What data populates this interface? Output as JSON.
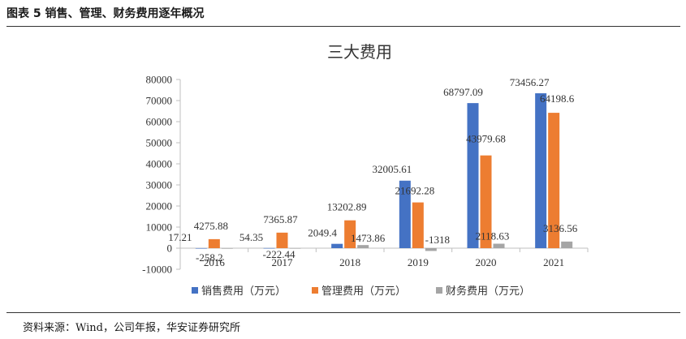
{
  "header": {
    "figure_title": "图表 5 销售、管理、财务费用逐年概况"
  },
  "footer": {
    "source": "资料来源：Wind，公司年报，华安证券研究所"
  },
  "colors": {
    "sales": "#4472C4",
    "admin": "#ED7D31",
    "finance": "#A5A5A5"
  },
  "chart_data": {
    "type": "bar",
    "title": "三大费用",
    "categories": [
      "2016",
      "2017",
      "2018",
      "2019",
      "2020",
      "2021"
    ],
    "series": [
      {
        "name": "销售费用（万元）",
        "values": [
          17.21,
          54.35,
          2049.4,
          32005.61,
          68797.09,
          73456.27
        ]
      },
      {
        "name": "管理费用（万元）",
        "values": [
          4275.88,
          7365.87,
          13202.89,
          21692.28,
          43979.68,
          64198.6
        ]
      },
      {
        "name": "财务费用（万元）",
        "values": [
          -258.2,
          -222.44,
          1473.86,
          -1318,
          2118.63,
          3136.56
        ]
      }
    ],
    "data_labels": [
      [
        "17.21",
        "54.35",
        "2049.4",
        "32005.61",
        "68797.09",
        "73456.27"
      ],
      [
        "4275.88",
        "7365.87",
        "13202.89",
        "21692.28",
        "43979.68",
        "64198.6"
      ],
      [
        "-258.2",
        "-222.44",
        "1473.86",
        "-1318",
        "2118.63",
        "3136.56"
      ]
    ],
    "y_ticks": [
      "-10000",
      "0",
      "10000",
      "20000",
      "30000",
      "40000",
      "50000",
      "60000",
      "70000",
      "80000"
    ],
    "ylim": [
      -10000,
      80000
    ],
    "xlabel": "",
    "ylabel": "",
    "grid": false,
    "legend_position": "bottom"
  }
}
